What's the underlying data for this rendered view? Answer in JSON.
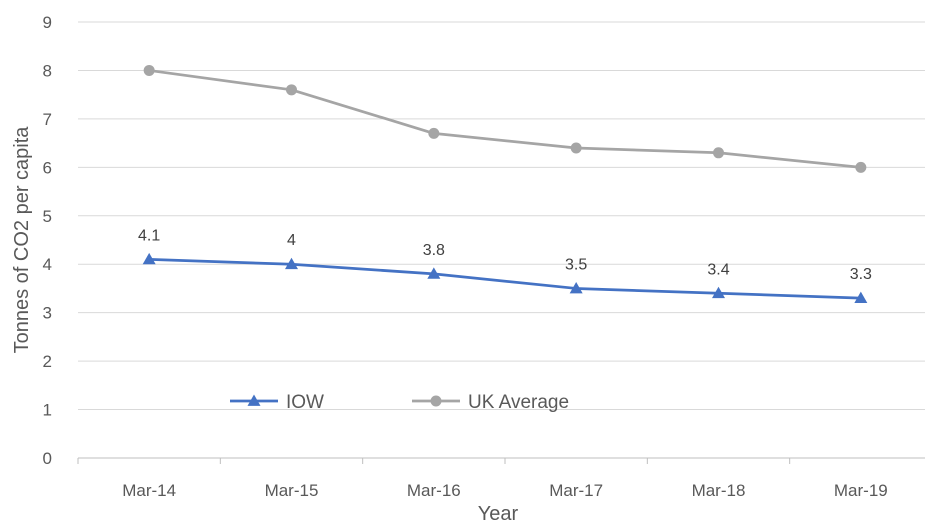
{
  "chart_data": {
    "type": "line",
    "categories": [
      "Mar-14",
      "Mar-15",
      "Mar-16",
      "Mar-17",
      "Mar-18",
      "Mar-19"
    ],
    "series": [
      {
        "name": "IOW",
        "values": [
          4.1,
          4.0,
          3.8,
          3.5,
          3.4,
          3.3
        ],
        "color": "#4472c4",
        "marker": "triangle",
        "labels": [
          "4.1",
          "4",
          "3.8",
          "3.5",
          "3.4",
          "3.3"
        ]
      },
      {
        "name": "UK Average",
        "values": [
          8.0,
          7.6,
          6.7,
          6.4,
          6.3,
          6.0
        ],
        "color": "#a5a5a5",
        "marker": "circle"
      }
    ],
    "xlabel": "Year",
    "ylabel": "Tonnes of CO2 per capita",
    "ylim": [
      0,
      9
    ],
    "yticks": [
      0,
      1,
      2,
      3,
      4,
      5,
      6,
      7,
      8,
      9
    ],
    "grid": true,
    "legend": "inside-lower-left"
  }
}
